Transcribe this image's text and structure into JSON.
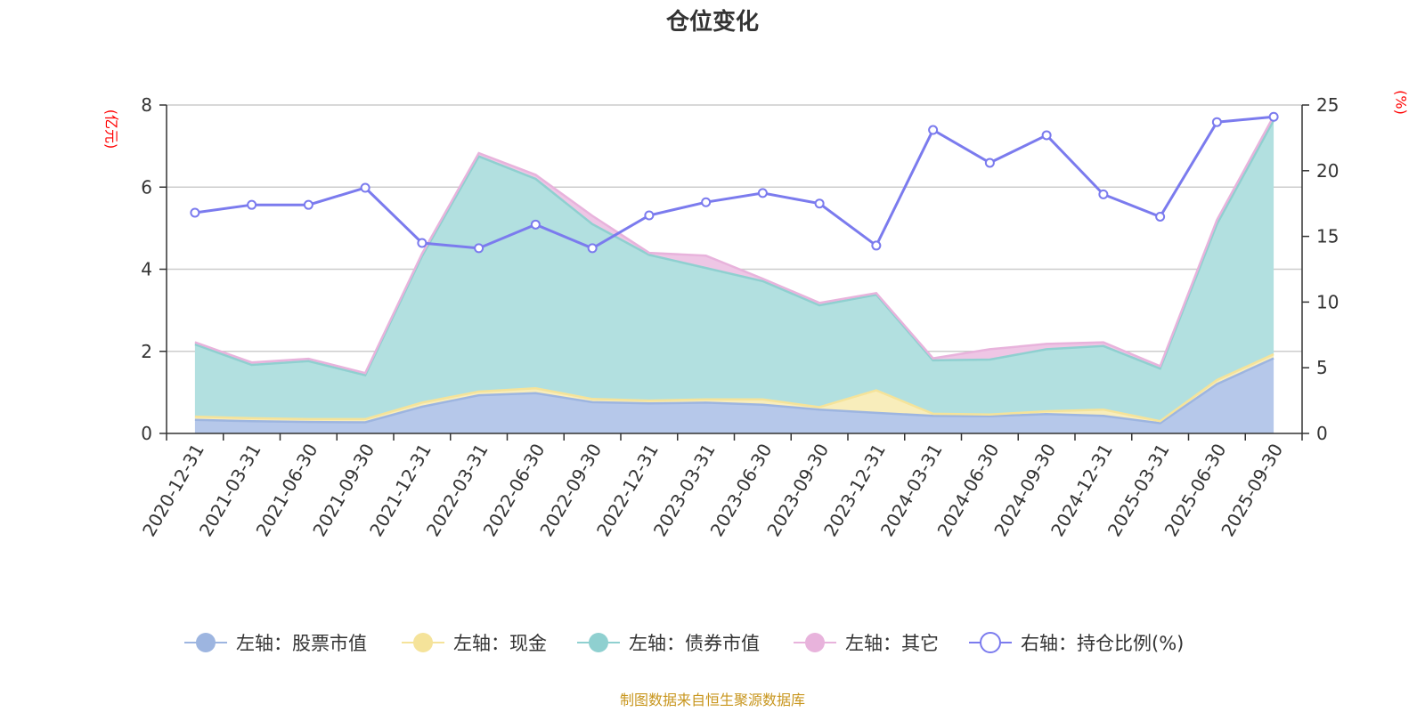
{
  "chart_data": {
    "type": "area",
    "title": "仓位变化",
    "left_axis_unit": "(亿元)",
    "right_axis_unit": "(%)",
    "ylim_left": [
      0,
      8
    ],
    "ylim_right": [
      0,
      25
    ],
    "left_ticks": [
      0,
      2,
      4,
      6,
      8
    ],
    "right_ticks": [
      0,
      5,
      10,
      15,
      20,
      25
    ],
    "grid": true,
    "legend_position": "bottom",
    "categories": [
      "2020-12-31",
      "2021-03-31",
      "2021-06-30",
      "2021-09-30",
      "2021-12-31",
      "2022-03-31",
      "2022-06-30",
      "2022-09-30",
      "2022-12-31",
      "2023-03-31",
      "2023-06-30",
      "2023-09-30",
      "2023-12-31",
      "2024-03-31",
      "2024-06-30",
      "2024-09-30",
      "2024-12-31",
      "2025-03-31",
      "2025-06-30",
      "2025-09-30"
    ],
    "series": [
      {
        "name": "左轴：股票市值",
        "axis": "left",
        "stack": "pos",
        "color": "#9db5e0",
        "fill": "#b6c8ea",
        "values": [
          0.33,
          0.3,
          0.28,
          0.27,
          0.65,
          0.93,
          0.98,
          0.76,
          0.73,
          0.75,
          0.7,
          0.58,
          0.5,
          0.43,
          0.42,
          0.47,
          0.43,
          0.25,
          1.2,
          1.83
        ]
      },
      {
        "name": "左轴：现金",
        "axis": "left",
        "stack": "pos",
        "color": "#f5e39a",
        "fill": "#f8edbb",
        "values": [
          0.08,
          0.07,
          0.07,
          0.08,
          0.1,
          0.09,
          0.12,
          0.08,
          0.07,
          0.08,
          0.13,
          0.06,
          0.55,
          0.05,
          0.04,
          0.07,
          0.15,
          0.05,
          0.1,
          0.1
        ]
      },
      {
        "name": "左轴：债券市值",
        "axis": "left",
        "stack": "pos",
        "color": "#8fd0d0",
        "fill": "#b2e0e0",
        "values": [
          1.76,
          1.3,
          1.41,
          1.07,
          3.57,
          5.73,
          5.1,
          4.26,
          3.55,
          3.2,
          2.88,
          2.48,
          2.33,
          1.3,
          1.34,
          1.51,
          1.55,
          1.28,
          3.8,
          5.7
        ]
      },
      {
        "name": "左轴：其它",
        "axis": "left",
        "stack": "pos",
        "color": "#e8b3dc",
        "fill": "#eec6e5",
        "values": [
          0.05,
          0.06,
          0.06,
          0.05,
          0.06,
          0.08,
          0.1,
          0.2,
          0.05,
          0.3,
          0.06,
          0.06,
          0.04,
          0.05,
          0.25,
          0.13,
          0.09,
          0.06,
          0.1,
          0.1
        ]
      },
      {
        "name": "右轴：持仓比例(%)",
        "axis": "right",
        "color": "#7b7bee",
        "values": [
          16.8,
          17.4,
          17.4,
          18.7,
          14.5,
          14.1,
          15.9,
          14.1,
          16.6,
          17.6,
          18.3,
          17.5,
          14.3,
          23.1,
          20.6,
          22.7,
          18.2,
          16.5,
          23.7,
          24.1
        ]
      }
    ]
  },
  "source_note": "制图数据来自恒生聚源数据库"
}
